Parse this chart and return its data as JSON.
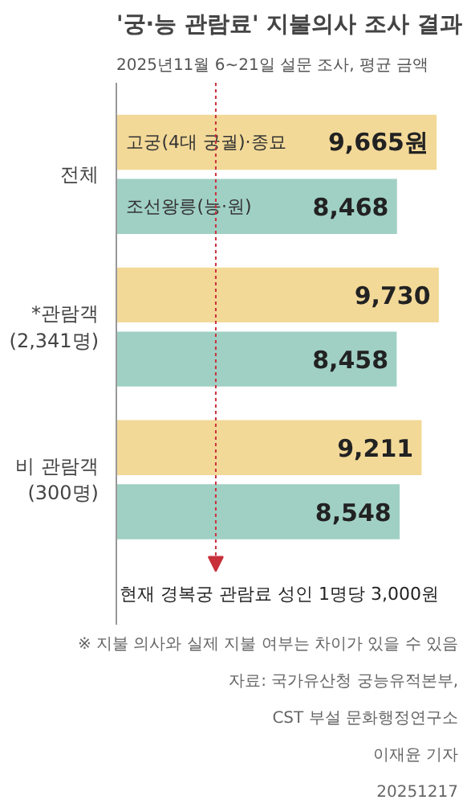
{
  "chart_data": {
    "type": "bar",
    "orientation": "horizontal",
    "title": "'궁·능 관람료' 지불의사 조사 결과",
    "subtitle": "2025년11월 6~21일 설문 조사, 평균 금액",
    "categories": [
      "전체",
      "*관람객\n(2,341명)",
      "비 관람객\n(300명)"
    ],
    "series": [
      {
        "name": "고궁(4대 궁궐)·종묘",
        "color": "#f3d998",
        "values": [
          9665,
          9730,
          9211
        ],
        "value_labels": [
          "9,665원",
          "9,730",
          "9,211"
        ]
      },
      {
        "name": "조선왕릉(능·원)",
        "color": "#a0d0c4",
        "values": [
          8468,
          8458,
          8548
        ],
        "value_labels": [
          "8,468",
          "8,458",
          "8,548"
        ]
      }
    ],
    "grid": false,
    "ref_lines": [
      {
        "axis": "x",
        "value": 3000,
        "label": "현재 경복궁 관람료 성인 1명당 3,000원",
        "color": "#c8303a",
        "line_style": "dotted"
      }
    ],
    "annotations": [
      "※ 지불 의사와 실제 지불 여부는 차이가 있을 수 있음",
      "자료: 국가유산청 궁능유적본부,\nCST 부설 문화행정연구소",
      "이재윤 기자",
      "20251217"
    ]
  }
}
